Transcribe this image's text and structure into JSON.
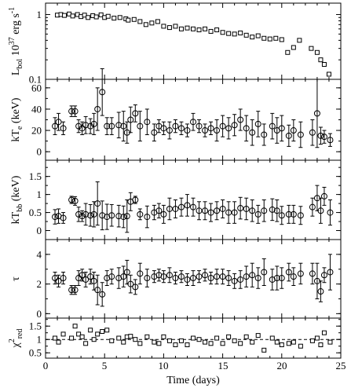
{
  "chart_data": [
    {
      "type": "scatter",
      "panel": "luminosity",
      "ylabel": "L_bol 10^37 erg s^-1",
      "yscale": "log",
      "ylim": [
        0.1,
        1.5
      ],
      "yticks": [
        "0.1",
        "1"
      ],
      "marker": "square",
      "x": [
        1.0,
        1.3,
        1.6,
        2.0,
        2.3,
        2.7,
        3.0,
        3.3,
        3.6,
        4.0,
        4.3,
        4.7,
        5.0,
        5.3,
        5.8,
        6.3,
        6.8,
        7.0,
        7.5,
        8.0,
        8.5,
        9.0,
        9.5,
        10.0,
        10.5,
        11.0,
        11.5,
        12.0,
        12.5,
        13.0,
        13.5,
        14.0,
        14.5,
        15.0,
        15.5,
        16.0,
        16.5,
        17.0,
        17.5,
        18.0,
        18.5,
        19.0,
        19.5,
        20.0,
        20.5,
        21.0,
        21.5,
        22.5,
        23.0,
        23.3,
        23.6,
        24.0
      ],
      "y": [
        0.98,
        1.0,
        0.97,
        1.02,
        0.95,
        1.0,
        0.93,
        0.98,
        0.9,
        0.96,
        0.92,
        0.99,
        0.9,
        0.94,
        0.88,
        0.9,
        0.86,
        0.82,
        0.84,
        0.78,
        0.7,
        0.74,
        0.78,
        0.66,
        0.63,
        0.66,
        0.6,
        0.62,
        0.6,
        0.58,
        0.6,
        0.55,
        0.58,
        0.53,
        0.51,
        0.5,
        0.52,
        0.48,
        0.45,
        0.47,
        0.43,
        0.42,
        0.43,
        0.41,
        0.26,
        0.31,
        0.4,
        0.3,
        0.26,
        0.2,
        0.17,
        0.12
      ]
    },
    {
      "type": "scatter",
      "panel": "kTe",
      "ylabel": "kT_e (keV)",
      "ylim": [
        -8,
        68
      ],
      "yticks": [
        "0",
        "20",
        "40",
        "60"
      ],
      "marker": "circle-errorbar",
      "x": [
        0.8,
        1.1,
        1.5,
        2.2,
        2.5,
        2.8,
        3.1,
        3.4,
        3.8,
        4.1,
        4.4,
        4.8,
        5.2,
        5.6,
        6.2,
        6.6,
        6.9,
        7.2,
        7.6,
        8.0,
        8.6,
        9.2,
        9.6,
        10.0,
        10.5,
        11.0,
        11.5,
        12.0,
        12.5,
        13.0,
        13.5,
        14.0,
        14.5,
        15.0,
        15.5,
        16.0,
        16.5,
        17.0,
        17.5,
        18.0,
        18.5,
        19.2,
        19.6,
        20.0,
        20.6,
        21.0,
        21.6,
        22.6,
        23.0,
        23.3,
        23.6,
        24.1
      ],
      "y": [
        24,
        28,
        22,
        38,
        38,
        24,
        22,
        25,
        24,
        26,
        40,
        56,
        24,
        24,
        25,
        24,
        18,
        30,
        36,
        24,
        28,
        18,
        24,
        22,
        20,
        24,
        22,
        20,
        28,
        24,
        20,
        22,
        20,
        24,
        22,
        25,
        30,
        22,
        18,
        26,
        16,
        24,
        20,
        22,
        15,
        20,
        16,
        18,
        36,
        15,
        14,
        11
      ],
      "err": [
        8,
        8,
        6,
        5,
        5,
        6,
        6,
        8,
        7,
        10,
        20,
        22,
        8,
        8,
        12,
        14,
        10,
        12,
        8,
        14,
        12,
        8,
        6,
        6,
        8,
        6,
        6,
        6,
        8,
        6,
        6,
        6,
        10,
        10,
        10,
        10,
        10,
        12,
        12,
        12,
        10,
        12,
        12,
        12,
        10,
        10,
        12,
        12,
        32,
        8,
        6,
        6
      ]
    },
    {
      "type": "scatter",
      "panel": "kTbb",
      "ylabel": "kT_bb (keV)",
      "ylim": [
        -0.25,
        1.95
      ],
      "yticks": [
        "0",
        "0.5",
        "1",
        "1.5"
      ],
      "marker": "circle-errorbar",
      "x": [
        0.8,
        1.1,
        1.5,
        2.2,
        2.5,
        2.8,
        3.1,
        3.4,
        3.8,
        4.1,
        4.4,
        4.8,
        5.2,
        5.6,
        6.2,
        6.6,
        6.9,
        7.2,
        7.6,
        8.0,
        8.6,
        9.2,
        9.6,
        10.0,
        10.5,
        11.0,
        11.5,
        12.0,
        12.5,
        13.0,
        13.5,
        14.0,
        14.5,
        15.0,
        15.5,
        16.0,
        16.5,
        17.0,
        17.5,
        18.0,
        18.5,
        19.2,
        19.6,
        20.0,
        20.6,
        21.0,
        21.6,
        22.6,
        23.0,
        23.3,
        23.6,
        24.1
      ],
      "y": [
        0.38,
        0.4,
        0.35,
        0.85,
        0.82,
        0.45,
        0.4,
        0.45,
        0.42,
        0.45,
        0.75,
        0.42,
        0.38,
        0.42,
        0.4,
        0.38,
        0.4,
        0.8,
        0.85,
        0.45,
        0.38,
        0.5,
        0.55,
        0.45,
        0.6,
        0.6,
        0.65,
        0.7,
        0.65,
        0.55,
        0.55,
        0.5,
        0.55,
        0.6,
        0.5,
        0.5,
        0.62,
        0.6,
        0.55,
        0.45,
        0.55,
        0.58,
        0.55,
        0.42,
        0.45,
        0.45,
        0.42,
        0.65,
        0.9,
        0.55,
        0.95,
        0.5
      ],
      "err": [
        0.2,
        0.2,
        0.15,
        0.1,
        0.12,
        0.2,
        0.15,
        0.3,
        0.3,
        0.35,
        0.6,
        0.4,
        0.35,
        0.3,
        0.3,
        0.3,
        0.45,
        0.25,
        0.1,
        0.15,
        0.3,
        0.2,
        0.2,
        0.25,
        0.3,
        0.25,
        0.25,
        0.3,
        0.25,
        0.25,
        0.25,
        0.25,
        0.25,
        0.25,
        0.3,
        0.3,
        0.3,
        0.3,
        0.3,
        0.25,
        0.3,
        0.3,
        0.3,
        0.25,
        0.25,
        0.25,
        0.25,
        0.25,
        0.35,
        0.35,
        0.25,
        0.35
      ]
    },
    {
      "type": "scatter",
      "panel": "tau",
      "ylabel": "τ",
      "ylim": [
        -0.3,
        5.0
      ],
      "yticks": [
        "0",
        "2",
        "4"
      ],
      "marker": "circle-errorbar",
      "x": [
        0.8,
        1.1,
        1.5,
        2.2,
        2.5,
        2.8,
        3.1,
        3.4,
        3.8,
        4.1,
        4.4,
        4.8,
        5.2,
        5.6,
        6.2,
        6.6,
        6.9,
        7.2,
        7.6,
        8.0,
        8.6,
        9.2,
        9.6,
        10.0,
        10.5,
        11.0,
        11.5,
        12.0,
        12.5,
        13.0,
        13.5,
        14.0,
        14.5,
        15.0,
        15.5,
        16.0,
        16.5,
        17.0,
        17.5,
        18.0,
        18.5,
        19.2,
        19.6,
        20.0,
        20.6,
        21.0,
        21.6,
        22.6,
        23.0,
        23.3,
        23.6,
        24.1
      ],
      "y": [
        2.4,
        2.2,
        2.4,
        1.6,
        1.6,
        2.4,
        2.6,
        2.3,
        2.5,
        2.2,
        1.6,
        1.3,
        2.4,
        2.5,
        2.4,
        2.5,
        2.8,
        2.0,
        1.8,
        2.7,
        2.4,
        2.5,
        2.6,
        2.5,
        2.6,
        2.4,
        2.5,
        2.3,
        2.4,
        2.5,
        2.6,
        2.4,
        2.5,
        2.5,
        2.4,
        2.2,
        2.3,
        2.5,
        2.6,
        2.4,
        2.8,
        2.3,
        2.4,
        2.4,
        2.8,
        2.5,
        2.7,
        2.7,
        2.2,
        1.5,
        2.6,
        2.8
      ],
      "err": [
        0.4,
        0.4,
        0.4,
        0.3,
        0.3,
        0.5,
        0.4,
        0.5,
        0.5,
        0.6,
        1.0,
        0.8,
        0.5,
        0.5,
        0.7,
        0.7,
        0.8,
        0.6,
        0.5,
        0.7,
        0.6,
        0.4,
        0.4,
        0.4,
        0.5,
        0.4,
        0.4,
        0.4,
        0.5,
        0.4,
        0.4,
        0.4,
        0.5,
        0.5,
        0.5,
        0.5,
        0.6,
        0.7,
        0.8,
        0.7,
        0.9,
        0.7,
        0.8,
        0.7,
        0.6,
        0.6,
        0.7,
        0.7,
        1.2,
        0.7,
        0.5,
        1.2
      ]
    },
    {
      "type": "scatter",
      "panel": "chi2",
      "ylabel": "χ²_red",
      "ylim": [
        0.3,
        1.8
      ],
      "yticks": [
        "0.5",
        "1",
        "1.5"
      ],
      "marker": "square",
      "reference_line": 1.0,
      "x": [
        0.8,
        1.1,
        1.5,
        2.2,
        2.5,
        2.8,
        3.1,
        3.4,
        3.8,
        4.1,
        4.4,
        4.8,
        5.2,
        5.6,
        6.2,
        6.6,
        6.9,
        7.2,
        7.6,
        8.0,
        8.6,
        9.2,
        9.6,
        10.0,
        10.5,
        11.0,
        11.5,
        12.0,
        12.5,
        13.0,
        13.5,
        14.0,
        14.5,
        15.0,
        15.5,
        16.0,
        16.5,
        17.0,
        17.5,
        18.0,
        18.5,
        19.2,
        19.6,
        20.0,
        20.6,
        21.0,
        21.6,
        22.6,
        23.0,
        23.3,
        23.6,
        24.1
      ],
      "y": [
        1.05,
        0.9,
        1.2,
        1.05,
        1.5,
        1.2,
        1.1,
        0.85,
        1.35,
        1.0,
        1.2,
        1.3,
        1.35,
        0.95,
        1.05,
        0.9,
        1.1,
        1.12,
        1.0,
        0.85,
        1.1,
        0.9,
        0.85,
        1.1,
        0.95,
        0.8,
        0.95,
        0.8,
        1.05,
        1.0,
        0.9,
        0.85,
        1.05,
        0.85,
        1.1,
        0.95,
        0.85,
        1.1,
        0.9,
        1.15,
        0.6,
        1.05,
        0.9,
        0.8,
        0.85,
        0.9,
        0.75,
        0.95,
        1.05,
        0.8,
        1.25,
        0.9
      ]
    }
  ],
  "xaxis": {
    "xlabel": "Time (days)",
    "xlim": [
      0,
      25
    ],
    "xticks": [
      "0",
      "5",
      "10",
      "15",
      "20",
      "25"
    ]
  }
}
